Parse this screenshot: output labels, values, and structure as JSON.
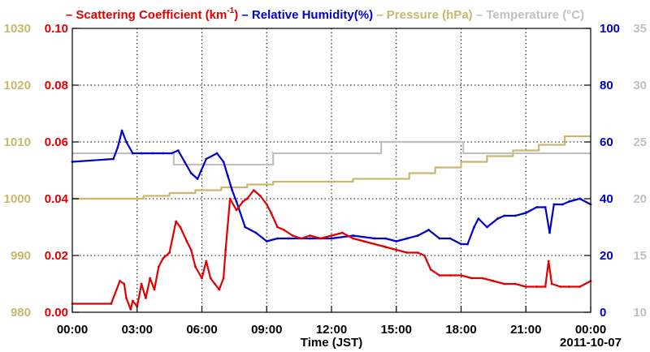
{
  "chart_data": {
    "type": "line",
    "legend": {
      "position": "top",
      "items": [
        {
          "series": "scattering",
          "dash": "–",
          "text": "Scattering Coefficient (km",
          "sup": "-1",
          "close": ")"
        },
        {
          "series": "humidity",
          "dash": "–",
          "text": "Relative Humidity(%)"
        },
        {
          "series": "pressure",
          "dash": "–",
          "text": "Pressure (hPa)"
        },
        {
          "series": "temperature",
          "dash": "–",
          "text": "Temperature (°C)"
        }
      ]
    },
    "xlabel": "Time (JST)",
    "date_label": "2011-10-07",
    "x_ticks": [
      "00:00",
      "03:00",
      "06:00",
      "09:00",
      "12:00",
      "15:00",
      "18:00",
      "21:00",
      "00:00"
    ],
    "xlim_hours": [
      0,
      24
    ],
    "grid": true,
    "axes": {
      "pressure": {
        "side": "left-outer",
        "ylim": [
          980,
          1030
        ],
        "ticks": [
          "980",
          "990",
          "1000",
          "1010",
          "1020",
          "1030"
        ],
        "color": "#c8b86e"
      },
      "scattering": {
        "side": "left-inner",
        "ylim": [
          0.0,
          0.1
        ],
        "ticks": [
          "0.00",
          "0.02",
          "0.04",
          "0.06",
          "0.08",
          "0.10"
        ],
        "color": "#e00000"
      },
      "humidity": {
        "side": "right-inner",
        "ylim": [
          0,
          100
        ],
        "ticks": [
          "0",
          "20",
          "40",
          "60",
          "80",
          "100"
        ],
        "color": "#0000d0"
      },
      "temperature": {
        "side": "right-outer",
        "ylim": [
          10,
          35
        ],
        "ticks": [
          "10",
          "15",
          "20",
          "25",
          "30",
          "35"
        ],
        "color": "#c0c0c0"
      }
    },
    "series": [
      {
        "key": "scattering",
        "name": "Scattering Coefficient",
        "axis": "scattering",
        "color": "#e00000",
        "x": [
          0,
          1.8,
          2.2,
          2.4,
          2.5,
          2.7,
          2.8,
          3.0,
          3.2,
          3.4,
          3.6,
          3.8,
          4.0,
          4.2,
          4.5,
          4.8,
          5.0,
          5.3,
          5.5,
          5.7,
          6.0,
          6.2,
          6.4,
          6.6,
          6.8,
          7.0,
          7.1,
          7.3,
          7.6,
          7.9,
          8.1,
          8.4,
          8.7,
          9.0,
          9.2,
          9.5,
          9.8,
          10.2,
          10.6,
          11.0,
          11.5,
          12.0,
          12.5,
          13.0,
          13.5,
          14.0,
          14.5,
          15.0,
          15.5,
          16.0,
          16.3,
          16.6,
          17.0,
          17.5,
          18.0,
          18.5,
          19.0,
          19.5,
          20.0,
          20.5,
          21.0,
          21.5,
          21.9,
          22.05,
          22.2,
          22.6,
          23.0,
          23.5,
          24.0
        ],
        "y": [
          0.003,
          0.003,
          0.011,
          0.01,
          0.005,
          0.001,
          0.004,
          0.002,
          0.01,
          0.005,
          0.012,
          0.008,
          0.016,
          0.019,
          0.021,
          0.032,
          0.03,
          0.025,
          0.022,
          0.016,
          0.012,
          0.018,
          0.012,
          0.01,
          0.008,
          0.012,
          0.022,
          0.04,
          0.036,
          0.039,
          0.04,
          0.043,
          0.041,
          0.038,
          0.035,
          0.03,
          0.029,
          0.027,
          0.026,
          0.027,
          0.026,
          0.027,
          0.028,
          0.026,
          0.025,
          0.024,
          0.023,
          0.022,
          0.021,
          0.021,
          0.02,
          0.015,
          0.013,
          0.013,
          0.013,
          0.012,
          0.012,
          0.011,
          0.01,
          0.01,
          0.009,
          0.009,
          0.009,
          0.018,
          0.01,
          0.009,
          0.009,
          0.009,
          0.011
        ]
      },
      {
        "key": "humidity",
        "name": "Relative Humidity",
        "axis": "humidity",
        "color": "#0000d0",
        "x": [
          0,
          1.9,
          2.1,
          2.3,
          2.5,
          2.8,
          3.2,
          3.7,
          4.2,
          4.6,
          4.9,
          5.2,
          5.5,
          5.8,
          6.2,
          6.7,
          7.0,
          7.2,
          7.4,
          7.6,
          8.0,
          8.5,
          9.0,
          9.5,
          10.0,
          11.0,
          12.0,
          13.0,
          14.0,
          14.5,
          15.0,
          15.5,
          16.0,
          16.5,
          17.0,
          17.5,
          18.0,
          18.3,
          18.6,
          18.8,
          19.2,
          19.7,
          20.0,
          20.5,
          21.0,
          21.5,
          21.9,
          22.1,
          22.3,
          22.7,
          23.0,
          23.5,
          24.0
        ],
        "y": [
          53,
          54,
          58,
          64,
          60,
          56,
          56,
          56,
          56,
          56,
          57,
          53,
          49,
          47,
          54,
          56,
          53,
          48,
          43,
          39,
          30,
          28,
          25,
          26,
          26,
          26,
          26,
          27,
          26,
          26,
          25,
          26,
          27,
          29,
          26,
          26,
          24,
          24,
          30,
          33,
          30,
          33,
          34,
          34,
          35,
          37,
          37,
          28,
          38,
          38,
          39,
          40,
          38
        ]
      },
      {
        "key": "pressure",
        "name": "Pressure",
        "axis": "pressure",
        "color": "#c8b86e",
        "x": [
          0,
          3.3,
          3.3,
          4.5,
          4.5,
          5.7,
          5.7,
          6.9,
          6.9,
          8.1,
          8.1,
          9.3,
          9.3,
          13.0,
          13.0,
          15.6,
          15.6,
          16.8,
          16.8,
          18.0,
          18.0,
          19.2,
          19.2,
          20.4,
          20.4,
          21.6,
          21.6,
          22.8,
          22.8,
          24.0
        ],
        "y": [
          1000,
          1000,
          1000.5,
          1000.5,
          1001,
          1001,
          1001.5,
          1001.5,
          1002,
          1002,
          1002.5,
          1002.5,
          1003,
          1003,
          1003.5,
          1003.5,
          1004.5,
          1004.5,
          1005.5,
          1005.5,
          1006.5,
          1006.5,
          1007.5,
          1007.5,
          1008.5,
          1008.5,
          1009.5,
          1009.5,
          1011,
          1011
        ]
      },
      {
        "key": "temperature",
        "name": "Temperature",
        "axis": "temperature",
        "color": "#c0c0c0",
        "x": [
          0,
          4.7,
          4.7,
          9.3,
          9.3,
          14.3,
          14.3,
          18.1,
          18.1,
          24.0
        ],
        "y": [
          24,
          24,
          23,
          23,
          24,
          24,
          25,
          25,
          24,
          24
        ]
      }
    ]
  }
}
